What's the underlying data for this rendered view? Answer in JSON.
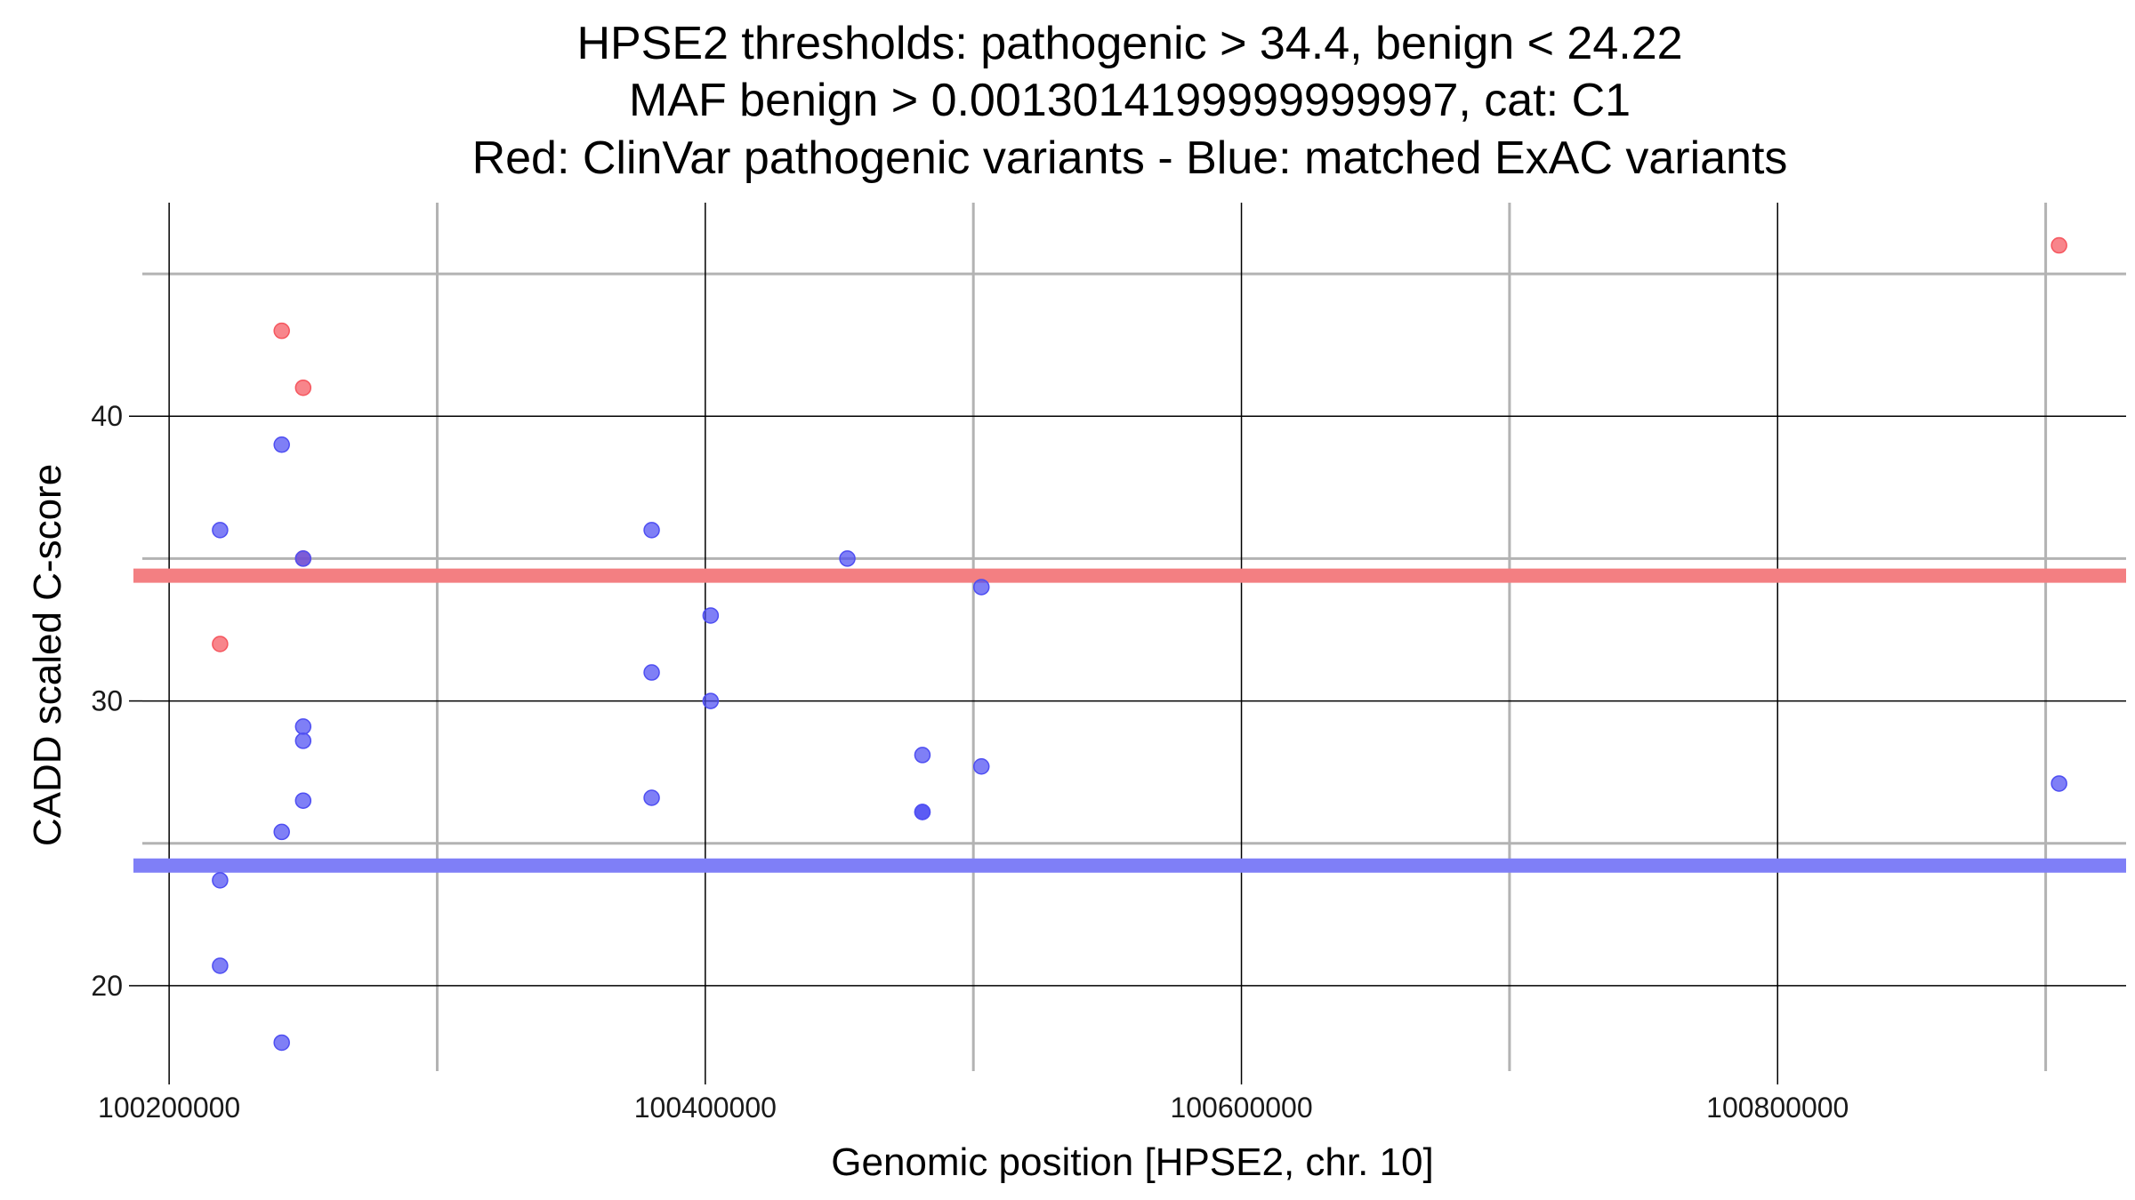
{
  "chart_data": {
    "type": "scatter",
    "title_lines": [
      "HPSE2 thresholds: pathogenic > 34.4, benign < 24.22",
      "MAF benign > 0.0013014199999999997, cat: C1",
      "Red: ClinVar pathogenic variants - Blue: matched ExAC variants"
    ],
    "xlabel": "Genomic position [HPSE2, chr. 10]",
    "ylabel": "CADD scaled C-score",
    "xlim": [
      100190000,
      100930000
    ],
    "ylim": [
      17,
      47.5
    ],
    "x_ticks": [
      100200000,
      100400000,
      100600000,
      100800000
    ],
    "x_tick_labels": [
      "100200000",
      "100400000",
      "100600000",
      "100800000"
    ],
    "x_minor_ticks": [
      100300000,
      100500000,
      100700000,
      100900000
    ],
    "y_ticks": [
      20,
      30,
      40
    ],
    "y_tick_labels": [
      "20",
      "30",
      "40"
    ],
    "y_minor_ticks": [
      25,
      35,
      45
    ],
    "grid": true,
    "thresholds": [
      {
        "name": "pathogenic",
        "value": 34.4,
        "color": "#f37f82"
      },
      {
        "name": "benign",
        "value": 24.22,
        "color": "#7f7ff7"
      }
    ],
    "series": [
      {
        "color": "#f5565e",
        "points": [
          {
            "x": 100242000,
            "y": 43
          },
          {
            "x": 100250000,
            "y": 41
          },
          {
            "x": 100250000,
            "y": 35
          },
          {
            "x": 100219000,
            "y": 32
          },
          {
            "x": 100905000,
            "y": 46
          }
        ]
      },
      {
        "color": "#4e4ef2",
        "points": [
          {
            "x": 100242000,
            "y": 39
          },
          {
            "x": 100219000,
            "y": 36
          },
          {
            "x": 100250000,
            "y": 35
          },
          {
            "x": 100250000,
            "y": 29.1
          },
          {
            "x": 100250000,
            "y": 28.6
          },
          {
            "x": 100250000,
            "y": 26.5
          },
          {
            "x": 100242000,
            "y": 25.4
          },
          {
            "x": 100219000,
            "y": 23.7
          },
          {
            "x": 100219000,
            "y": 20.7
          },
          {
            "x": 100242000,
            "y": 18
          },
          {
            "x": 100380000,
            "y": 36
          },
          {
            "x": 100380000,
            "y": 31
          },
          {
            "x": 100380000,
            "y": 26.6
          },
          {
            "x": 100402000,
            "y": 33
          },
          {
            "x": 100402000,
            "y": 30
          },
          {
            "x": 100453000,
            "y": 35
          },
          {
            "x": 100481000,
            "y": 28.1
          },
          {
            "x": 100481000,
            "y": 26.1
          },
          {
            "x": 100481000,
            "y": 26.1
          },
          {
            "x": 100503000,
            "y": 34
          },
          {
            "x": 100503000,
            "y": 27.7
          },
          {
            "x": 100905000,
            "y": 27.1
          }
        ]
      }
    ]
  }
}
